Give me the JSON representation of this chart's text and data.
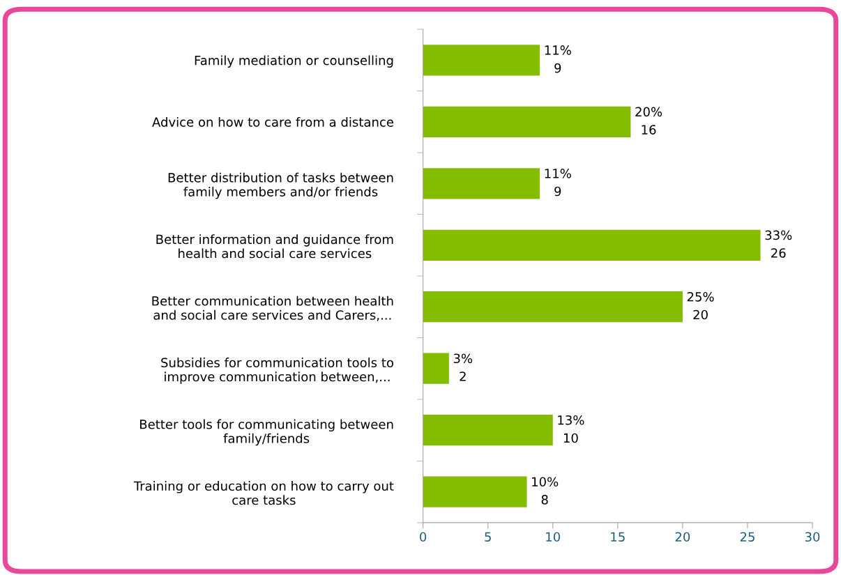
{
  "chart_data": {
    "type": "bar",
    "orientation": "horizontal",
    "categories": [
      "Family mediation or counselling",
      "Advice on how to care from a distance",
      "Better distribution of tasks between\nfamily members and/or friends",
      "Better information and guidance from\nhealth and social care services",
      "Better communication between health\nand social care services and Carers,...",
      "Subsidies for communication tools to\nimprove communication between,...",
      "Better tools for communicating between\nfamily/friends",
      "Training or education on how to carry out\ncare tasks"
    ],
    "values": [
      9,
      16,
      9,
      26,
      20,
      2,
      10,
      8
    ],
    "value_labels": [
      "11%\n9",
      "20%\n16",
      "11%\n9",
      "33%\n26",
      "25%\n20",
      "3%\n2",
      "13%\n10",
      "10%\n8"
    ],
    "color": "#84bd00",
    "xlim": [
      0,
      30
    ],
    "xticks": [
      0,
      5,
      10,
      15,
      20,
      25,
      30
    ],
    "grid": false,
    "legend": false
  }
}
